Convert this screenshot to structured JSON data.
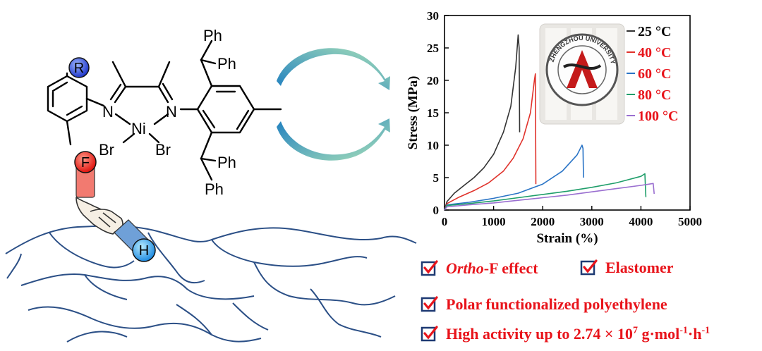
{
  "molecule": {
    "r_label": "R",
    "f_label": "F",
    "h_label": "H",
    "n_left": "N",
    "n_right": "N",
    "ni": "Ni",
    "br_left": "Br",
    "br_right": "Br",
    "ph_top1": "Ph",
    "ph_top2": "Ph",
    "ph_bot1": "Ph",
    "ph_bot2": "Ph"
  },
  "chart_data": {
    "type": "line",
    "xlabel": "Strain (%)",
    "ylabel": "Stress (MPa)",
    "xlim": [
      0,
      5000
    ],
    "ylim": [
      0,
      30
    ],
    "xticks": [
      "0",
      "1000",
      "2000",
      "3000",
      "4000",
      "5000"
    ],
    "yticks": [
      "0",
      "5",
      "10",
      "15",
      "20",
      "25",
      "30"
    ],
    "legend_position": "top-right",
    "inset_logo_text": "ZHENGZHOU UNIVERSITY",
    "series": [
      {
        "name": "25 °C",
        "color": "#333333",
        "x": [
          0,
          50,
          200,
          400,
          600,
          800,
          1000,
          1200,
          1350,
          1450,
          1500,
          1520,
          1530
        ],
        "y": [
          0,
          1.3,
          2.6,
          3.8,
          5.0,
          6.5,
          8.6,
          12.0,
          16.0,
          22.0,
          27.0,
          25.0,
          12.0
        ]
      },
      {
        "name": "40 °C",
        "color": "#e0322b",
        "x": [
          0,
          50,
          300,
          600,
          900,
          1200,
          1400,
          1600,
          1750,
          1830,
          1850,
          1860
        ],
        "y": [
          0,
          1.0,
          2.0,
          3.0,
          4.2,
          6.0,
          8.0,
          11.0,
          15.0,
          20.0,
          21.0,
          4.0
        ]
      },
      {
        "name": "60 °C",
        "color": "#2a74c6",
        "x": [
          0,
          50,
          500,
          1000,
          1500,
          2000,
          2400,
          2700,
          2800,
          2820,
          2830
        ],
        "y": [
          0,
          0.8,
          1.2,
          1.8,
          2.6,
          4.0,
          6.0,
          8.5,
          10.0,
          9.5,
          5.0
        ]
      },
      {
        "name": "80 °C",
        "color": "#1f9e6a",
        "x": [
          0,
          50,
          500,
          1000,
          1500,
          2000,
          2500,
          3000,
          3500,
          4000,
          4080,
          4100
        ],
        "y": [
          0,
          0.7,
          1.0,
          1.4,
          1.9,
          2.4,
          2.9,
          3.5,
          4.2,
          5.2,
          5.6,
          2.0
        ]
      },
      {
        "name": "100 °C",
        "color": "#9a6fd0",
        "x": [
          0,
          50,
          500,
          1000,
          1500,
          2000,
          2500,
          3000,
          3500,
          4000,
          4250,
          4270
        ],
        "y": [
          0,
          0.5,
          0.8,
          1.1,
          1.5,
          1.9,
          2.3,
          2.8,
          3.3,
          3.8,
          4.1,
          2.5
        ]
      }
    ]
  },
  "features": [
    {
      "italic": "Ortho",
      "text": "-F effect"
    },
    {
      "text": "Elastomer"
    },
    {
      "text": "Polar functionalized polyethylene"
    },
    {
      "text": "High activity up to 2.74 × 10",
      "sup": "7",
      "text2": " g·mol",
      "sup2": "-1",
      "text3": "·h",
      "sup3": "-1"
    }
  ],
  "colors": {
    "accent_red": "#e8141b",
    "checkbox_blue": "#1e3a73",
    "arrow_blue": "#1e88c8",
    "arrow_green": "#8fd6a8"
  }
}
